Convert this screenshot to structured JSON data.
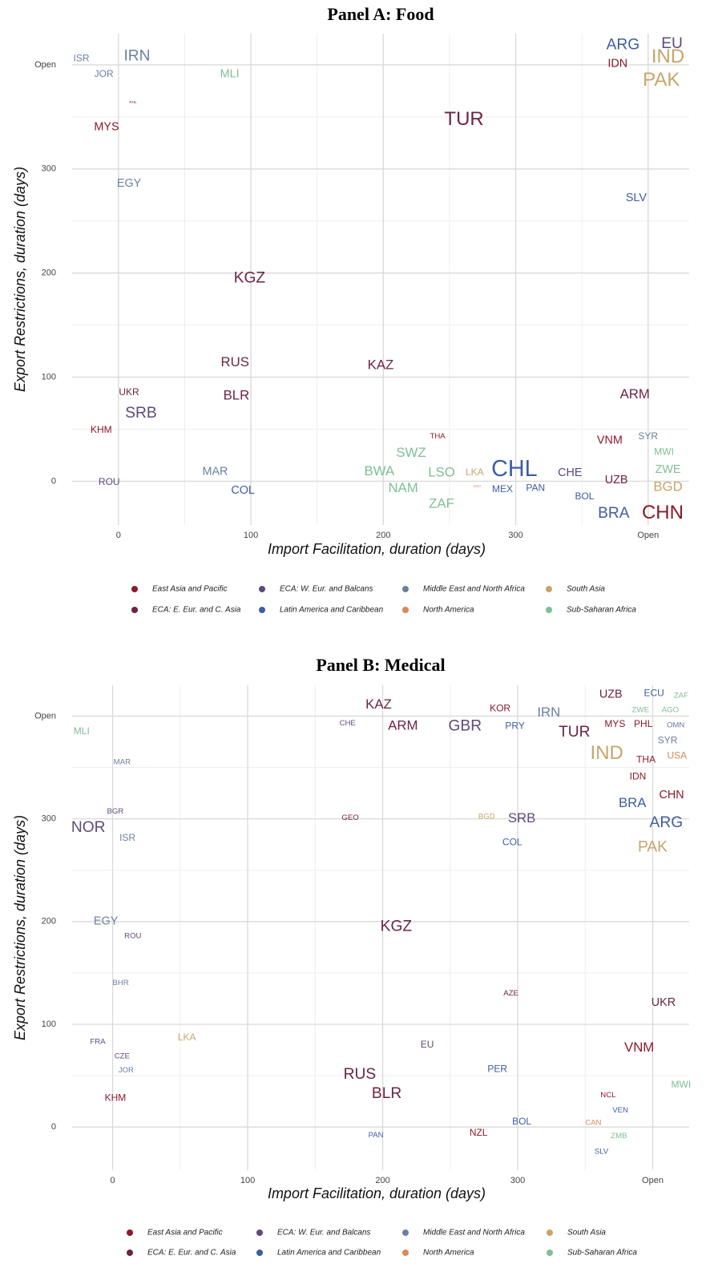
{
  "chart_data": [
    {
      "type": "scatter",
      "title": "Panel A: Food",
      "xlabel": "Import Facilitation, duration (days)",
      "ylabel": "Export Restrictions, duration (days)",
      "xlim": [
        -35,
        431
      ],
      "ylim": [
        -42,
        430
      ],
      "xticks": [
        0,
        100,
        200,
        300,
        {
          "value": 400,
          "label": "Open"
        }
      ],
      "yticks": [
        0,
        100,
        200,
        300,
        {
          "value": 400,
          "label": "Open"
        }
      ],
      "minor_xticks": [
        50,
        150,
        250,
        350
      ],
      "minor_yticks": [
        50,
        150,
        250,
        350
      ],
      "grid": true,
      "series": [
        {
          "name": "East Asia and Pacific",
          "color": "#8b1a2b",
          "labels": [
            "MYS",
            "IDN",
            "CHN",
            "VNM",
            "THA",
            "KHM",
            "PHL"
          ],
          "x": [
            -9,
            377,
            411,
            371,
            241,
            -13,
            11
          ],
          "values": [
            340,
            401,
            -31,
            39,
            43,
            49,
            364
          ],
          "sizes": [
            3,
            3,
            5,
            3,
            2,
            2.5,
            1
          ]
        },
        {
          "name": "ECA: E. Eur. and C. Asia",
          "color": "#6b2445",
          "labels": [
            "TUR",
            "KGZ",
            "RUS",
            "BLR",
            "KAZ",
            "ARM",
            "UKR",
            "UZB"
          ],
          "x": [
            261,
            99,
            88,
            89,
            198,
            390,
            8,
            376
          ],
          "values": [
            347,
            195,
            114,
            82,
            111,
            83,
            85,
            1
          ],
          "sizes": [
            5,
            4,
            3.5,
            3.5,
            3.5,
            3.5,
            2.5,
            3
          ]
        },
        {
          "name": "ECA: W. Eur. and Balcans",
          "color": "#5e4a7a",
          "labels": [
            "SRB",
            "EU",
            "ROU",
            "CHE"
          ],
          "x": [
            17,
            418,
            -7,
            341
          ],
          "values": [
            65,
            420,
            -1,
            8
          ],
          "sizes": [
            4,
            4,
            2.5,
            3
          ]
        },
        {
          "name": "Latin America and Caribbean",
          "color": "#3d5ea3",
          "labels": [
            "ARG",
            "CHL",
            "COL",
            "MEX",
            "PAN",
            "BOL",
            "BRA",
            "SLV"
          ],
          "x": [
            381,
            299,
            94,
            290,
            315,
            352,
            374,
            391
          ],
          "values": [
            419,
            11,
            -9,
            -8,
            -7,
            -15,
            -31,
            272
          ],
          "sizes": [
            4,
            6,
            3,
            2.5,
            2.5,
            2.5,
            4,
            3
          ]
        },
        {
          "name": "Middle East and North Africa",
          "color": "#6b7fa0",
          "labels": [
            "IRN",
            "ISR",
            "JOR",
            "EGY",
            "MAR",
            "SYR"
          ],
          "x": [
            14,
            -28,
            -11,
            8,
            73,
            400
          ],
          "values": [
            408,
            406,
            391,
            286,
            9,
            43
          ],
          "sizes": [
            4,
            2.5,
            2.5,
            3,
            3,
            2.5
          ]
        },
        {
          "name": "North America",
          "color": "#d9895a",
          "labels": [
            "USA"
          ],
          "x": [
            271
          ],
          "values": [
            -5
          ],
          "sizes": [
            1
          ]
        },
        {
          "name": "South Asia",
          "color": "#c8a46a",
          "labels": [
            "IND",
            "PAK",
            "BGD",
            "LKA"
          ],
          "x": [
            415,
            410,
            415,
            269
          ],
          "values": [
            407,
            385,
            -6,
            8
          ],
          "sizes": [
            5,
            5,
            3.5,
            2.5
          ]
        },
        {
          "name": "Sub-Saharan Africa",
          "color": "#7fbf95",
          "labels": [
            "MLI",
            "BWA",
            "SWZ",
            "LSO",
            "NAM",
            "ZAF",
            "MWI",
            "ZWE"
          ],
          "x": [
            84,
            197,
            221,
            244,
            215,
            244,
            412,
            415
          ],
          "values": [
            391,
            9,
            27,
            8,
            -7,
            -22,
            28,
            11
          ],
          "sizes": [
            3,
            3.5,
            3.5,
            3.5,
            3.5,
            3.5,
            2.5,
            3
          ]
        }
      ]
    },
    {
      "type": "scatter",
      "title": "Panel B: Medical",
      "xlabel": "Import Facilitation, duration (days)",
      "ylabel": "Export Restrictions, duration (days)",
      "xlim": [
        -30,
        427
      ],
      "ylim": [
        -42,
        430
      ],
      "xticks": [
        0,
        100,
        200,
        300,
        {
          "value": 400,
          "label": "Open"
        }
      ],
      "yticks": [
        0,
        100,
        200,
        300,
        {
          "value": 400,
          "label": "Open"
        }
      ],
      "minor_xticks": [
        50,
        150,
        250,
        350
      ],
      "minor_yticks": [
        50,
        150,
        250,
        350
      ],
      "grid": true,
      "series": [
        {
          "name": "East Asia and Pacific",
          "color": "#8b1a2b",
          "labels": [
            "MYS",
            "PHL",
            "THA",
            "IDN",
            "CHN",
            "VNM",
            "KHM",
            "NCL",
            "NZL",
            "KOR"
          ],
          "x": [
            372,
            393,
            395,
            389,
            414,
            390,
            2,
            367,
            271,
            287
          ],
          "values": [
            392,
            392,
            357,
            341,
            323,
            77,
            28,
            31,
            -6,
            407
          ],
          "sizes": [
            2.5,
            2.5,
            2.5,
            2.5,
            3,
            3.5,
            2.5,
            2,
            2.5,
            2.5
          ]
        },
        {
          "name": "ECA: E. Eur. and C. Asia",
          "color": "#6b2445",
          "labels": [
            "KAZ",
            "ARM",
            "TUR",
            "UZB",
            "KGZ",
            "RUS",
            "BLR",
            "UKR",
            "AZE",
            "GEO"
          ],
          "x": [
            197,
            215,
            342,
            369,
            210,
            183,
            203,
            408,
            295,
            176
          ],
          "values": [
            411,
            390,
            384,
            421,
            195,
            51,
            32,
            121,
            130,
            301
          ],
          "sizes": [
            3.5,
            3.5,
            4,
            3,
            4,
            4,
            4,
            3,
            2,
            2
          ]
        },
        {
          "name": "ECA: W. Eur. and Balcans",
          "color": "#5e4a7a",
          "labels": [
            "GBR",
            "NOR",
            "SRB",
            "CHE",
            "BGR",
            "ROU",
            "EU",
            "FRA",
            "CZE"
          ],
          "x": [
            261,
            -18,
            303,
            174,
            2,
            15,
            233,
            -11,
            7
          ],
          "values": [
            390,
            291,
            300,
            393,
            307,
            186,
            80,
            83,
            69
          ],
          "sizes": [
            4,
            4,
            3.5,
            2,
            2,
            2,
            2.5,
            2,
            2
          ]
        },
        {
          "name": "Latin America and Caribbean",
          "color": "#3d5ea3",
          "labels": [
            "PRY",
            "ECU",
            "BRA",
            "ARG",
            "COL",
            "PER",
            "BOL",
            "PAN",
            "VEN",
            "SLV"
          ],
          "x": [
            298,
            401,
            385,
            410,
            296,
            285,
            303,
            195,
            376,
            362
          ],
          "values": [
            390,
            422,
            315,
            296,
            277,
            56,
            5,
            -8,
            16,
            -24
          ],
          "sizes": [
            2.5,
            2.5,
            3.5,
            4,
            2.5,
            2.5,
            2.5,
            2,
            2,
            2
          ]
        },
        {
          "name": "Middle East and North Africa",
          "color": "#6b7fa0",
          "labels": [
            "IRN",
            "EGY",
            "ISR",
            "MAR",
            "BHR",
            "JOR",
            "SYR",
            "OMN"
          ],
          "x": [
            323,
            -5,
            11,
            7,
            6,
            10,
            411,
            417
          ],
          "values": [
            403,
            200,
            281,
            355,
            140,
            55,
            376,
            391
          ],
          "sizes": [
            3.5,
            3,
            2.5,
            2,
            2,
            2,
            2.5,
            2
          ]
        },
        {
          "name": "North America",
          "color": "#d9895a",
          "labels": [
            "USA",
            "CAN"
          ],
          "x": [
            418,
            356
          ],
          "values": [
            361,
            4
          ],
          "sizes": [
            2.5,
            2
          ]
        },
        {
          "name": "South Asia",
          "color": "#c8a46a",
          "labels": [
            "IND",
            "PAK",
            "BGD",
            "LKA"
          ],
          "x": [
            366,
            400,
            277,
            55
          ],
          "values": [
            363,
            272,
            302,
            87
          ],
          "sizes": [
            5,
            4,
            2,
            2.5
          ]
        },
        {
          "name": "Sub-Saharan Africa",
          "color": "#7fbf95",
          "labels": [
            "ZAF",
            "AGO",
            "ZWE",
            "MLI",
            "MWI",
            "ZMB"
          ],
          "x": [
            421,
            413,
            391,
            -23,
            421,
            375
          ],
          "values": [
            420,
            406,
            406,
            385,
            41,
            -9
          ],
          "sizes": [
            2,
            2,
            2,
            2.5,
            2.5,
            2
          ]
        }
      ]
    }
  ]
}
